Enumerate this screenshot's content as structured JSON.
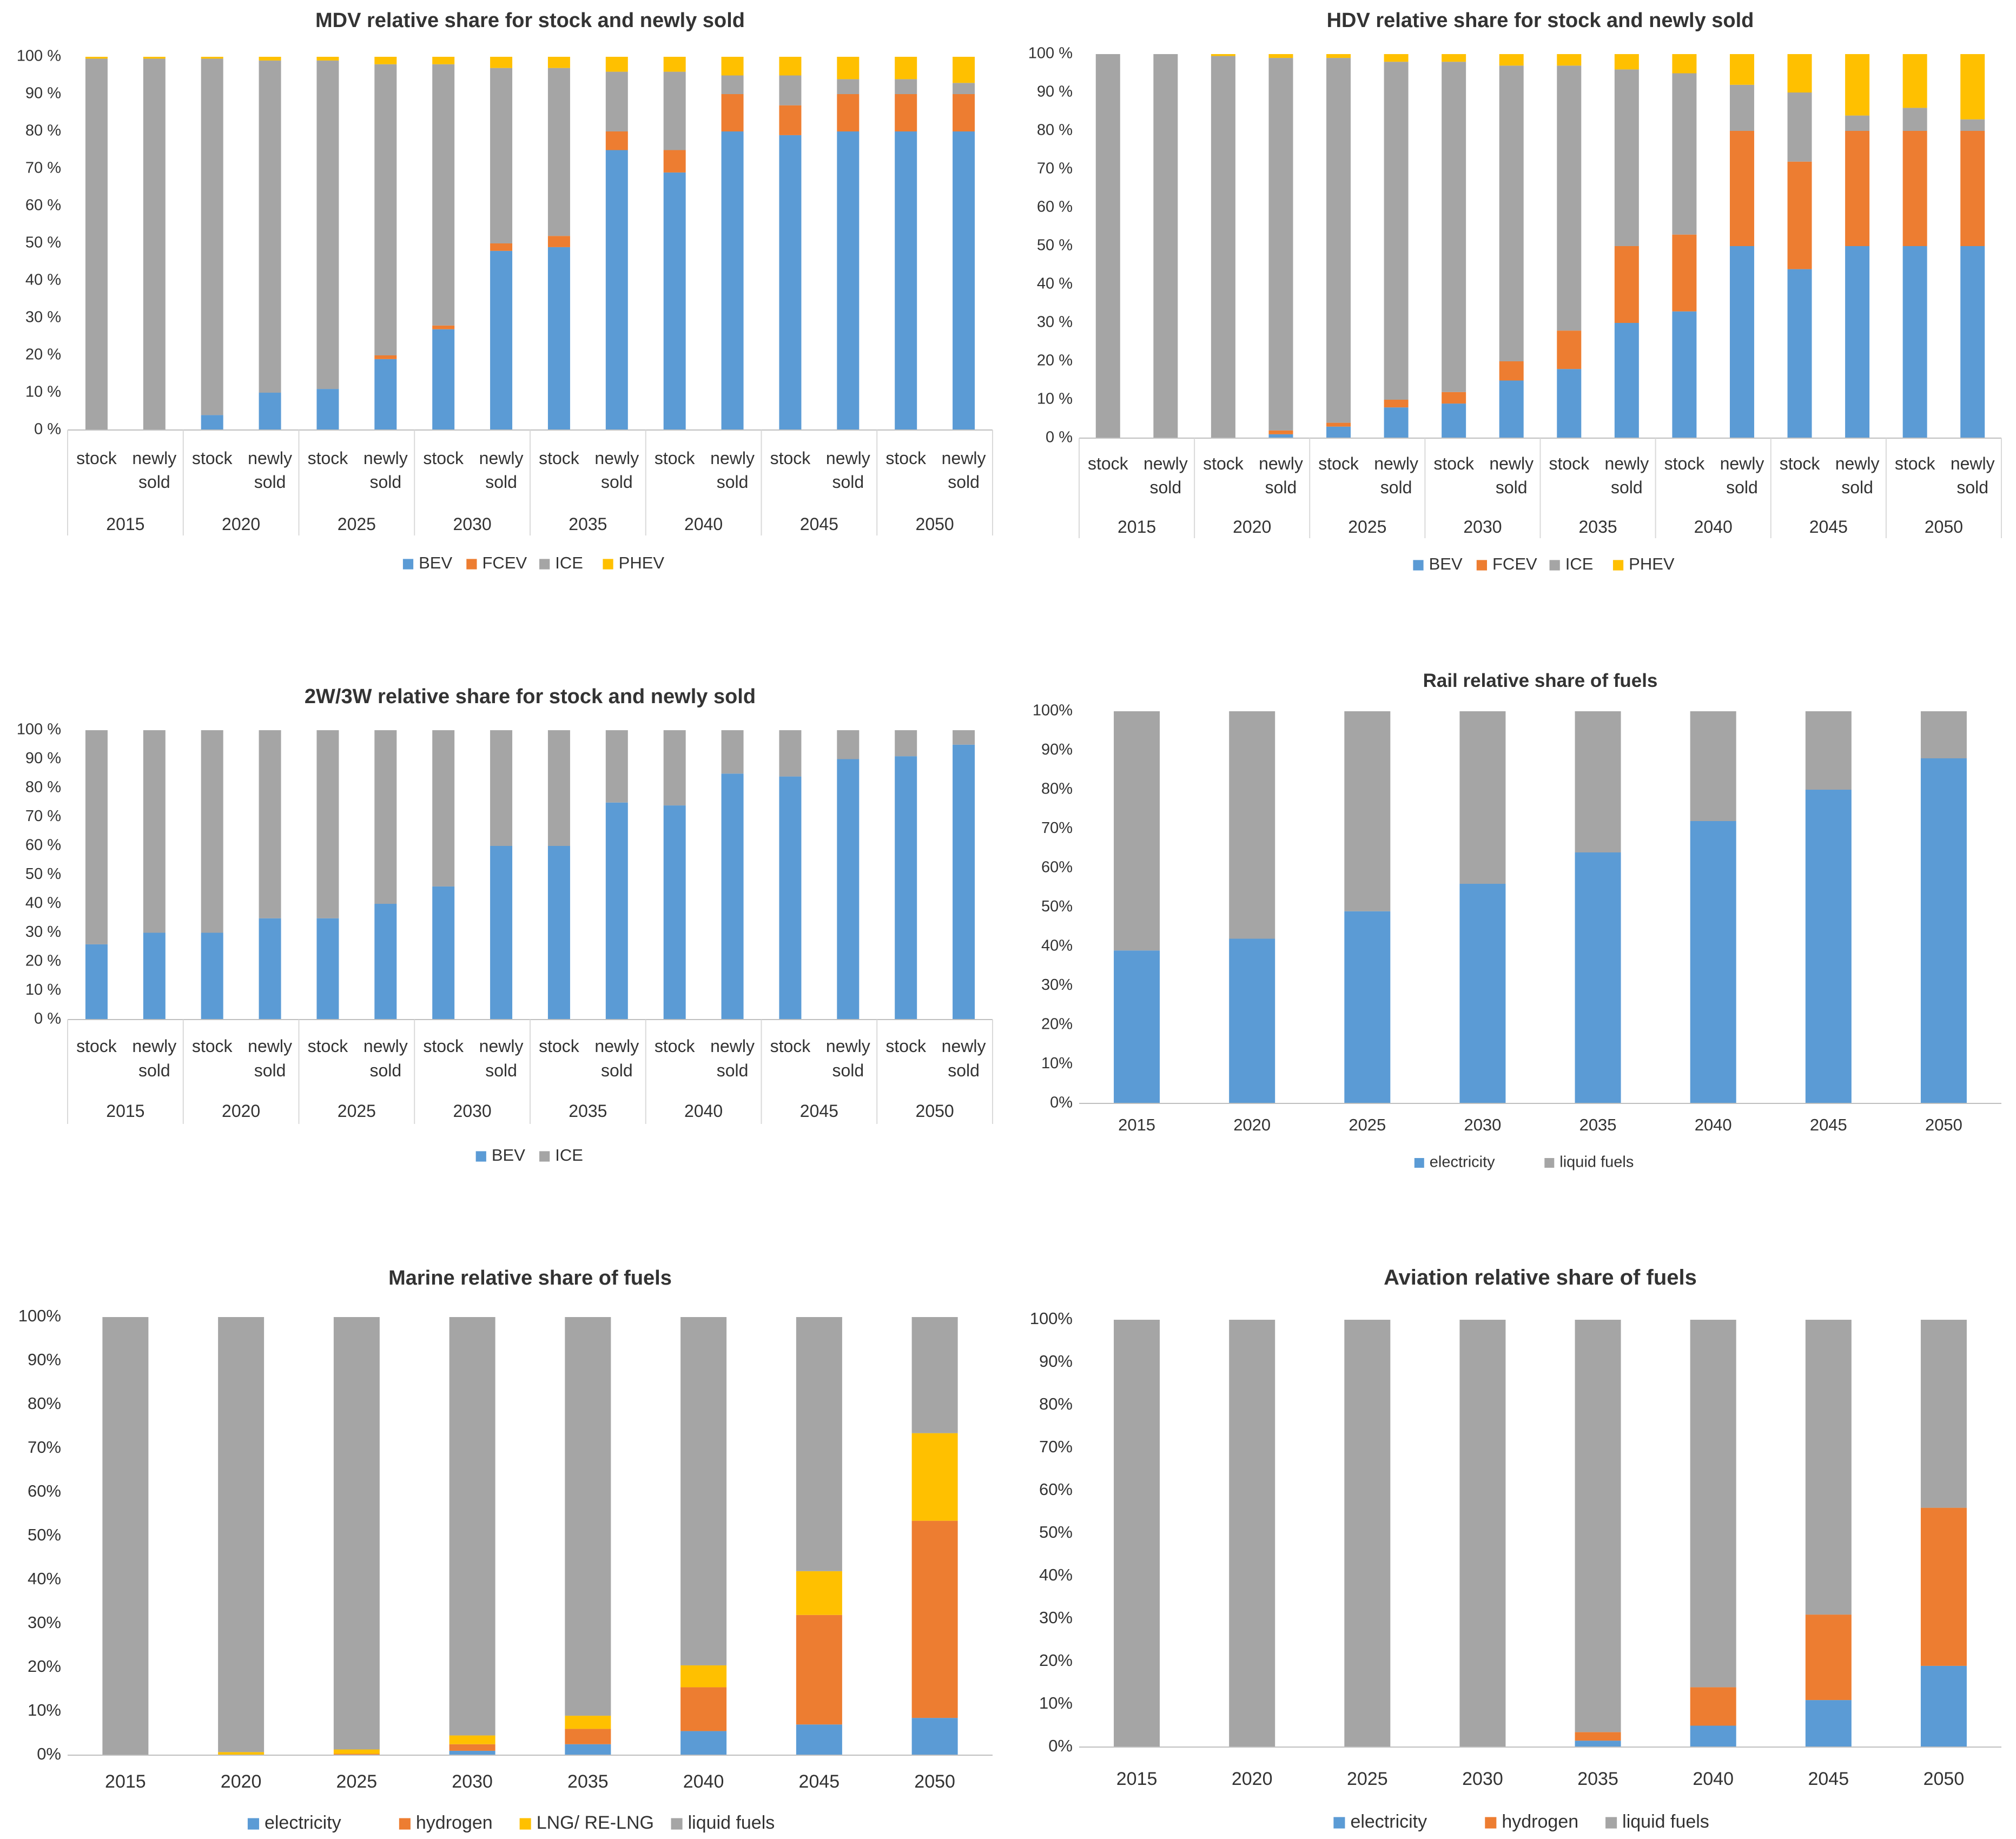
{
  "colors": {
    "blue": "#5b9bd5",
    "orange": "#ed7d31",
    "gray": "#a5a5a5",
    "yellow": "#ffc000"
  },
  "chart_data": [
    {
      "type": "bar",
      "title": "MDV relative share for stock and newly sold",
      "yticks": [
        "0 %",
        "10 %",
        "20 %",
        "30 %",
        "40 %",
        "50 %",
        "60 %",
        "70 %",
        "80 %",
        "90 %",
        "100 %"
      ],
      "groups": [
        "2015",
        "2020",
        "2025",
        "2030",
        "2035",
        "2040",
        "2045",
        "2050"
      ],
      "sub_labels": [
        "stock",
        "newly sold"
      ],
      "series": [
        {
          "name": "BEV",
          "color": "#5b9bd5",
          "values": [
            0,
            0,
            4,
            10,
            11,
            19,
            27,
            48,
            49,
            75,
            69,
            80,
            79,
            80,
            80,
            80
          ]
        },
        {
          "name": "FCEV",
          "color": "#ed7d31",
          "values": [
            0,
            0,
            0,
            0,
            0,
            1,
            1,
            2,
            3,
            5,
            6,
            10,
            8,
            10,
            10,
            10
          ]
        },
        {
          "name": "ICE",
          "color": "#a5a5a5",
          "values": [
            99.5,
            99.5,
            95.5,
            89,
            88,
            78,
            70,
            47,
            45,
            16,
            21,
            5,
            8,
            4,
            4,
            3
          ]
        },
        {
          "name": "PHEV",
          "color": "#ffc000",
          "values": [
            0.5,
            0.5,
            0.5,
            1,
            1,
            2,
            2,
            3,
            3,
            4,
            4,
            5,
            5,
            6,
            6,
            7
          ]
        }
      ],
      "legend": [
        "BEV",
        "FCEV",
        "ICE",
        "PHEV"
      ]
    },
    {
      "type": "bar",
      "title": "HDV relative share for stock and newly sold",
      "yticks": [
        "0 %",
        "10 %",
        "20 %",
        "30 %",
        "40 %",
        "50 %",
        "60 %",
        "70 %",
        "80 %",
        "90 %",
        "100 %"
      ],
      "groups": [
        "2015",
        "2020",
        "2025",
        "2030",
        "2035",
        "2040",
        "2045",
        "2050"
      ],
      "sub_labels": [
        "stock",
        "newly sold"
      ],
      "series": [
        {
          "name": "BEV",
          "color": "#5b9bd5",
          "values": [
            0,
            0,
            0,
            1,
            3,
            8,
            9,
            15,
            18,
            30,
            33,
            50,
            44,
            50,
            50,
            50
          ]
        },
        {
          "name": "FCEV",
          "color": "#ed7d31",
          "values": [
            0,
            0,
            0,
            1,
            1,
            2,
            3,
            5,
            10,
            20,
            20,
            30,
            28,
            30,
            30,
            30
          ]
        },
        {
          "name": "ICE",
          "color": "#a5a5a5",
          "values": [
            100,
            100,
            99.5,
            97,
            95,
            88,
            86,
            77,
            69,
            46,
            42,
            12,
            18,
            4,
            6,
            3
          ]
        },
        {
          "name": "PHEV",
          "color": "#ffc000",
          "values": [
            0,
            0,
            0.5,
            1,
            1,
            2,
            2,
            3,
            3,
            4,
            5,
            8,
            10,
            16,
            14,
            17
          ]
        }
      ],
      "legend": [
        "BEV",
        "FCEV",
        "ICE",
        "PHEV"
      ]
    },
    {
      "type": "bar",
      "title": "2W/3W relative share for stock and newly sold",
      "yticks": [
        "0 %",
        "10 %",
        "20 %",
        "30 %",
        "40 %",
        "50 %",
        "60 %",
        "70 %",
        "80 %",
        "90 %",
        "100 %"
      ],
      "groups": [
        "2015",
        "2020",
        "2025",
        "2030",
        "2035",
        "2040",
        "2045",
        "2050"
      ],
      "sub_labels": [
        "stock",
        "newly sold"
      ],
      "series": [
        {
          "name": "BEV",
          "color": "#5b9bd5",
          "values": [
            26,
            30,
            30,
            35,
            35,
            40,
            46,
            60,
            60,
            75,
            74,
            85,
            84,
            90,
            91,
            95
          ]
        },
        {
          "name": "ICE",
          "color": "#a5a5a5",
          "values": [
            74,
            70,
            70,
            65,
            65,
            60,
            54,
            40,
            40,
            25,
            26,
            15,
            16,
            10,
            9,
            5
          ]
        }
      ],
      "legend": [
        "BEV",
        "ICE"
      ]
    },
    {
      "type": "bar",
      "title": "Rail relative share of fuels",
      "yticks": [
        "0%",
        "10%",
        "20%",
        "30%",
        "40%",
        "50%",
        "60%",
        "70%",
        "80%",
        "90%",
        "100%"
      ],
      "categories": [
        "2015",
        "2020",
        "2025",
        "2030",
        "2035",
        "2040",
        "2045",
        "2050"
      ],
      "series": [
        {
          "name": "electricity",
          "color": "#5b9bd5",
          "values": [
            39,
            42,
            49,
            56,
            64,
            72,
            80,
            88
          ]
        },
        {
          "name": "liquid fuels",
          "color": "#a5a5a5",
          "values": [
            61,
            58,
            51,
            44,
            36,
            28,
            20,
            12
          ]
        }
      ],
      "legend": [
        "electricity",
        "liquid fuels"
      ]
    },
    {
      "type": "bar",
      "title": "Marine relative share of fuels",
      "yticks": [
        "0%",
        "10%",
        "20%",
        "30%",
        "40%",
        "50%",
        "60%",
        "70%",
        "80%",
        "90%",
        "100%"
      ],
      "categories": [
        "2015",
        "2020",
        "2025",
        "2030",
        "2035",
        "2040",
        "2045",
        "2050"
      ],
      "series": [
        {
          "name": "electricity",
          "color": "#5b9bd5",
          "values": [
            0,
            0,
            0,
            1,
            2.5,
            5.5,
            7,
            8.5
          ]
        },
        {
          "name": "hydrogen",
          "color": "#ed7d31",
          "values": [
            0,
            0,
            0.3,
            1.5,
            3.5,
            10,
            25,
            45
          ]
        },
        {
          "name": "LNG/ RE-LNG",
          "color": "#ffc000",
          "values": [
            0,
            0.7,
            1,
            2,
            3,
            5,
            10,
            20
          ]
        },
        {
          "name": "liquid fuels",
          "color": "#a5a5a5",
          "values": [
            100,
            99.3,
            98.7,
            95.5,
            91,
            79.5,
            58,
            26.5
          ]
        }
      ],
      "legend": [
        "electricity",
        "hydrogen",
        "LNG/ RE-LNG",
        "liquid fuels"
      ]
    },
    {
      "type": "bar",
      "title": "Aviation relative share of fuels",
      "yticks": [
        "0%",
        "10%",
        "20%",
        "30%",
        "40%",
        "50%",
        "60%",
        "70%",
        "80%",
        "90%",
        "100%"
      ],
      "categories": [
        "2015",
        "2020",
        "2025",
        "2030",
        "2035",
        "2040",
        "2045",
        "2050"
      ],
      "series": [
        {
          "name": "electricity",
          "color": "#5b9bd5",
          "values": [
            0,
            0,
            0,
            0,
            1.5,
            5,
            11,
            19
          ]
        },
        {
          "name": "hydrogen",
          "color": "#ed7d31",
          "values": [
            0,
            0,
            0,
            0,
            2,
            9,
            20,
            37
          ]
        },
        {
          "name": "liquid fuels",
          "color": "#a5a5a5",
          "values": [
            100,
            100,
            100,
            100,
            96.5,
            86,
            69,
            44
          ]
        }
      ],
      "legend": [
        "electricity",
        "hydrogen",
        "liquid fuels"
      ]
    }
  ]
}
